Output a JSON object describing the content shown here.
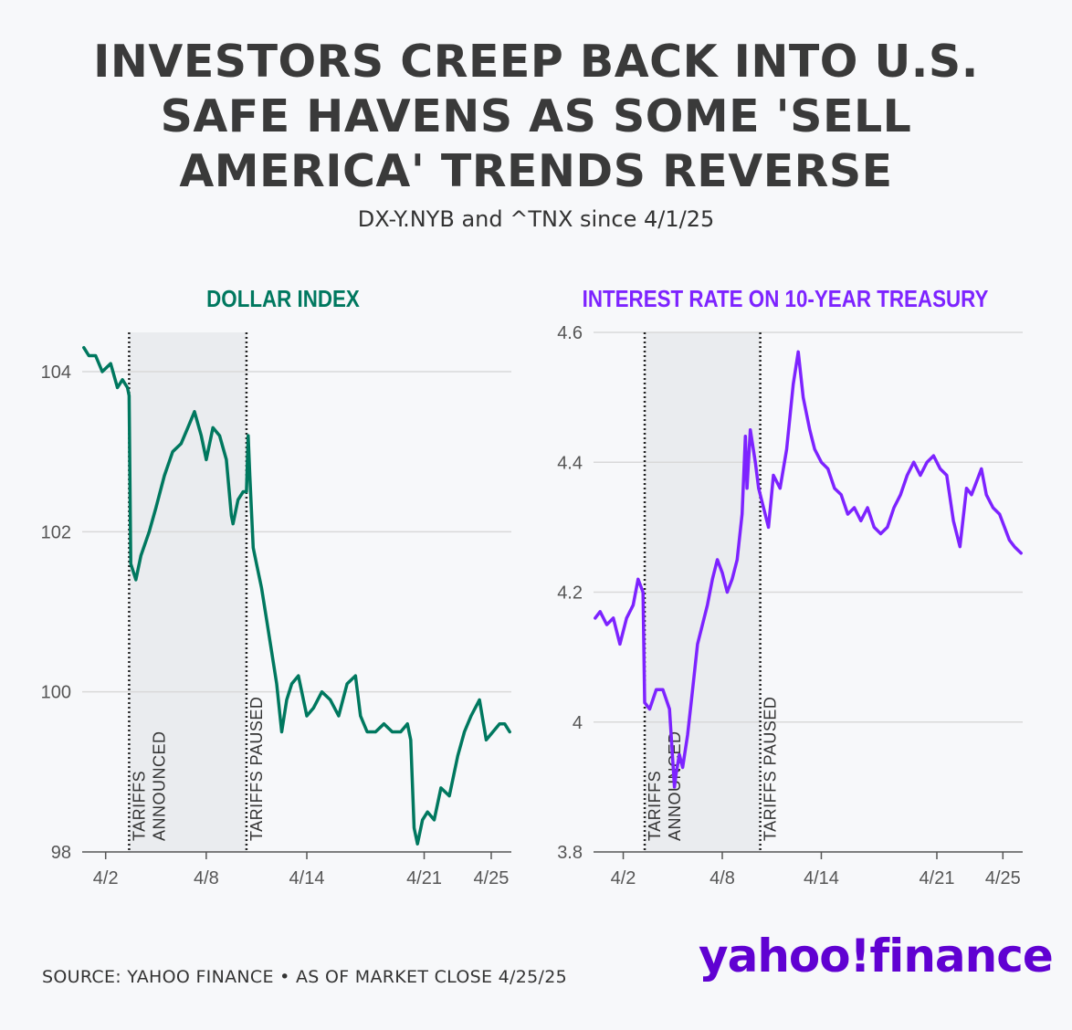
{
  "header": {
    "title_lines": [
      "INVESTORS CREEP BACK INTO U.S.",
      "SAFE HAVENS AS SOME 'SELL",
      "AMERICA' TRENDS REVERSE"
    ],
    "subtitle": "DX-Y.NYB and ^TNX since 4/1/25"
  },
  "footer": {
    "source": "SOURCE: YAHOO FINANCE • AS OF MARKET CLOSE 4/25/25",
    "logo_text": "yahoo!finance"
  },
  "colors": {
    "dollar": "#00785f",
    "treasury": "#7d23ff",
    "logo": "#6001d2",
    "shade": "#eaecef",
    "grid": "#d9d9d9"
  },
  "chart_data": [
    {
      "type": "line",
      "title": "DOLLAR INDEX",
      "ylim": [
        98,
        104.5
      ],
      "yticks": [
        98,
        100,
        102,
        104
      ],
      "ytick_labels": [
        "98",
        "100",
        "102",
        "104"
      ],
      "xlim_days": [
        0.6,
        26.2
      ],
      "xticks": [
        2,
        8,
        14,
        21,
        25
      ],
      "xtick_labels": [
        "4/2",
        "4/8",
        "4/14",
        "4/21",
        "4/25"
      ],
      "shaded_period": [
        3.4,
        10.4
      ],
      "events": [
        {
          "day": 3.4,
          "lines": [
            "TARIFFS",
            "ANNOUNCED"
          ]
        },
        {
          "day": 10.4,
          "lines": [
            "TARIFFS PAUSED"
          ]
        }
      ],
      "series": [
        {
          "name": "Dollar Index",
          "x": [
            0.7,
            1.0,
            1.4,
            1.8,
            2.3,
            2.7,
            3.0,
            3.3,
            3.4,
            3.5,
            3.8,
            4.1,
            4.6,
            5.0,
            5.5,
            6.0,
            6.5,
            6.9,
            7.3,
            7.7,
            8.0,
            8.4,
            8.8,
            9.2,
            9.5,
            9.6,
            9.9,
            10.2,
            10.4,
            10.5,
            10.6,
            10.8,
            11.0,
            11.3,
            11.6,
            11.9,
            12.2,
            12.5,
            12.8,
            13.1,
            13.5,
            14.0,
            14.4,
            14.9,
            15.4,
            15.9,
            16.4,
            16.9,
            17.2,
            17.6,
            18.1,
            18.6,
            19.1,
            19.6,
            20.0,
            20.2,
            20.4,
            20.6,
            20.9,
            21.2,
            21.6,
            22.0,
            22.5,
            23.0,
            23.4,
            23.8,
            24.3,
            24.7,
            25.1,
            25.5,
            25.8,
            26.1
          ],
          "values": [
            104.3,
            104.2,
            104.2,
            104.0,
            104.1,
            103.8,
            103.9,
            103.8,
            103.7,
            101.6,
            101.4,
            101.7,
            102.0,
            102.3,
            102.7,
            103.0,
            103.1,
            103.3,
            103.5,
            103.2,
            102.9,
            103.3,
            103.2,
            102.9,
            102.2,
            102.1,
            102.4,
            102.5,
            102.5,
            103.2,
            102.7,
            101.8,
            101.6,
            101.3,
            100.9,
            100.5,
            100.1,
            99.5,
            99.9,
            100.1,
            100.2,
            99.7,
            99.8,
            100.0,
            99.9,
            99.7,
            100.1,
            100.2,
            99.7,
            99.5,
            99.5,
            99.6,
            99.5,
            99.5,
            99.6,
            99.4,
            98.3,
            98.1,
            98.4,
            98.5,
            98.4,
            98.8,
            98.7,
            99.2,
            99.5,
            99.7,
            99.9,
            99.4,
            99.5,
            99.6,
            99.6,
            99.5
          ]
        }
      ]
    },
    {
      "type": "line",
      "title": "INTEREST RATE ON 10-YEAR TREASURY",
      "ylim": [
        3.8,
        4.6
      ],
      "yticks": [
        3.8,
        4,
        4.2,
        4.4,
        4.6
      ],
      "ytick_labels": [
        "3.8",
        "4",
        "4.2",
        "4.4",
        "4.6"
      ],
      "xlim_days": [
        0.2,
        26.2
      ],
      "xticks": [
        2,
        8,
        14,
        21,
        25
      ],
      "xtick_labels": [
        "4/2",
        "4/8",
        "4/14",
        "4/21",
        "4/25"
      ],
      "shaded_period": [
        3.3,
        10.3
      ],
      "events": [
        {
          "day": 3.3,
          "lines": [
            "TARIFFS",
            "ANNOUNCED"
          ]
        },
        {
          "day": 10.3,
          "lines": [
            "TARIFFS PAUSED"
          ]
        }
      ],
      "series": [
        {
          "name": "10-Year Treasury Yield",
          "x": [
            0.3,
            0.6,
            1.0,
            1.4,
            1.8,
            2.2,
            2.6,
            2.9,
            3.2,
            3.3,
            3.6,
            4.0,
            4.4,
            4.8,
            5.1,
            5.2,
            5.4,
            5.6,
            5.9,
            6.2,
            6.5,
            6.8,
            7.1,
            7.4,
            7.7,
            8.0,
            8.3,
            8.6,
            8.9,
            9.2,
            9.4,
            9.5,
            9.7,
            10.0,
            10.2,
            10.5,
            10.8,
            11.1,
            11.5,
            11.9,
            12.3,
            12.6,
            12.9,
            13.3,
            13.6,
            14.0,
            14.4,
            14.8,
            15.2,
            15.6,
            16.0,
            16.4,
            16.8,
            17.2,
            17.6,
            18.0,
            18.4,
            18.8,
            19.2,
            19.6,
            20.0,
            20.4,
            20.8,
            21.2,
            21.6,
            22.0,
            22.4,
            22.8,
            23.1,
            23.4,
            23.7,
            24.0,
            24.4,
            24.8,
            25.1,
            25.4,
            25.7,
            26.1
          ],
          "values": [
            4.16,
            4.17,
            4.15,
            4.16,
            4.12,
            4.16,
            4.18,
            4.22,
            4.2,
            4.03,
            4.02,
            4.05,
            4.05,
            4.02,
            3.9,
            3.92,
            3.95,
            3.93,
            3.98,
            4.05,
            4.12,
            4.15,
            4.18,
            4.22,
            4.25,
            4.23,
            4.2,
            4.22,
            4.25,
            4.32,
            4.44,
            4.36,
            4.45,
            4.4,
            4.36,
            4.33,
            4.3,
            4.38,
            4.36,
            4.42,
            4.52,
            4.57,
            4.5,
            4.45,
            4.42,
            4.4,
            4.39,
            4.36,
            4.35,
            4.32,
            4.33,
            4.31,
            4.33,
            4.3,
            4.29,
            4.3,
            4.33,
            4.35,
            4.38,
            4.4,
            4.38,
            4.4,
            4.41,
            4.39,
            4.38,
            4.31,
            4.27,
            4.36,
            4.35,
            4.37,
            4.39,
            4.35,
            4.33,
            4.32,
            4.3,
            4.28,
            4.27,
            4.26
          ]
        }
      ]
    }
  ]
}
